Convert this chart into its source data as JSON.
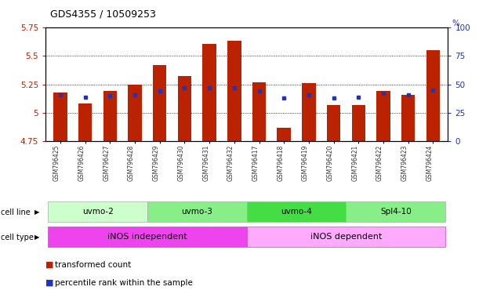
{
  "title": "GDS4355 / 10509253",
  "samples": [
    "GSM796425",
    "GSM796426",
    "GSM796427",
    "GSM796428",
    "GSM796429",
    "GSM796430",
    "GSM796431",
    "GSM796432",
    "GSM796417",
    "GSM796418",
    "GSM796419",
    "GSM796420",
    "GSM796421",
    "GSM796422",
    "GSM796423",
    "GSM796424"
  ],
  "bar_values": [
    5.18,
    5.08,
    5.19,
    5.25,
    5.42,
    5.32,
    5.6,
    5.63,
    5.27,
    4.87,
    5.26,
    5.07,
    5.07,
    5.19,
    5.16,
    5.55
  ],
  "blue_dot_values": [
    5.16,
    5.14,
    5.15,
    5.16,
    5.19,
    5.22,
    5.22,
    5.22,
    5.19,
    5.13,
    5.16,
    5.13,
    5.14,
    5.17,
    5.16,
    5.2
  ],
  "ymin": 4.75,
  "ymax": 5.75,
  "yticks_left": [
    4.75,
    5.0,
    5.25,
    5.5,
    5.75
  ],
  "ytick_labels_left": [
    "4.75",
    "5",
    "5.25",
    "5.5",
    "5.75"
  ],
  "right_ytick_pcts": [
    0,
    25,
    50,
    75,
    100
  ],
  "bar_color": "#bb2200",
  "dot_color": "#2233bb",
  "cell_line_groups": [
    {
      "label": "uvmo-2",
      "start": 0,
      "end": 4,
      "color": "#ccffcc"
    },
    {
      "label": "uvmo-3",
      "start": 4,
      "end": 8,
      "color": "#88ee88"
    },
    {
      "label": "uvmo-4",
      "start": 8,
      "end": 12,
      "color": "#44dd44"
    },
    {
      "label": "Spl4-10",
      "start": 12,
      "end": 16,
      "color": "#88ee88"
    }
  ],
  "cell_type_groups": [
    {
      "label": "iNOS independent",
      "start": 0,
      "end": 8,
      "color": "#ee44ee"
    },
    {
      "label": "iNOS dependent",
      "start": 8,
      "end": 16,
      "color": "#ffaaff"
    }
  ],
  "legend_red": "transformed count",
  "legend_blue": "percentile rank within the sample",
  "bg_color": "#ffffff"
}
